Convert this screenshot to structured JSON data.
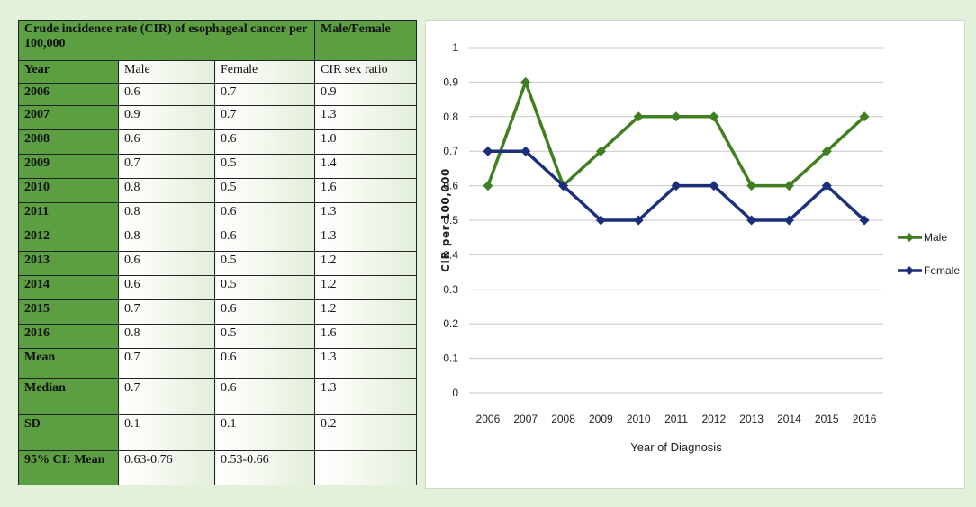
{
  "table": {
    "title": "Crude incidence rate (CIR) of esophageal cancer per 100,000",
    "ratio_header": "Male/Female",
    "col_headers": [
      "Year",
      "Male",
      "Female",
      "CIR sex ratio"
    ],
    "rows": [
      {
        "label": "2006",
        "male": "0.6",
        "female": "0.7",
        "ratio": "0.9"
      },
      {
        "label": "2007",
        "male": "0.9",
        "female": "0.7",
        "ratio": "1.3"
      },
      {
        "label": "2008",
        "male": "0.6",
        "female": "0.6",
        "ratio": "1.0"
      },
      {
        "label": "2009",
        "male": "0.7",
        "female": "0.5",
        "ratio": "1.4"
      },
      {
        "label": "2010",
        "male": "0.8",
        "female": "0.5",
        "ratio": "1.6"
      },
      {
        "label": "2011",
        "male": "0.8",
        "female": "0.6",
        "ratio": "1.3"
      },
      {
        "label": "2012",
        "male": "0.8",
        "female": "0.6",
        "ratio": "1.3"
      },
      {
        "label": "2013",
        "male": "0.6",
        "female": "0.5",
        "ratio": "1.2"
      },
      {
        "label": "2014",
        "male": "0.6",
        "female": "0.5",
        "ratio": "1.2"
      },
      {
        "label": "2015",
        "male": "0.7",
        "female": "0.6",
        "ratio": "1.2"
      },
      {
        "label": "2016",
        "male": "0.8",
        "female": "0.5",
        "ratio": "1.6"
      },
      {
        "label": "Mean",
        "male": "0.7",
        "female": "0.6",
        "ratio": "1.3"
      },
      {
        "label": "Median",
        "male": "0.7",
        "female": "0.6",
        "ratio": "1.3"
      },
      {
        "label": "SD",
        "male": "0.1",
        "female": "0.1",
        "ratio": "0.2"
      },
      {
        "label": "95% CI: Mean",
        "male": "0.63-0.76",
        "female": "0.53-0.66",
        "ratio": ""
      }
    ]
  },
  "colors": {
    "background": "#e3f0da",
    "table_header": "#5c9e42",
    "male": "#3f7f1f",
    "female": "#1c2f7c",
    "grid": "#c8c8c8"
  },
  "chart_data": {
    "type": "line",
    "x": [
      "2006",
      "2007",
      "2008",
      "2009",
      "2010",
      "2011",
      "2012",
      "2013",
      "2014",
      "2015",
      "2016"
    ],
    "series": [
      {
        "name": "Male",
        "values": [
          0.6,
          0.9,
          0.6,
          0.7,
          0.8,
          0.8,
          0.8,
          0.6,
          0.6,
          0.7,
          0.8
        ]
      },
      {
        "name": "Female",
        "values": [
          0.7,
          0.7,
          0.6,
          0.5,
          0.5,
          0.6,
          0.6,
          0.5,
          0.5,
          0.6,
          0.5
        ]
      }
    ],
    "xlabel": "Year of Diagnosis",
    "ylabel": "CIR per 100,000",
    "ylim": [
      0,
      1
    ],
    "yticks": [
      "0",
      "0.1",
      "0.2",
      "0.3",
      "0.4",
      "0.5",
      "0.6",
      "0.7",
      "0.8",
      "0.9",
      "1"
    ],
    "grid": true,
    "legend": "right"
  }
}
